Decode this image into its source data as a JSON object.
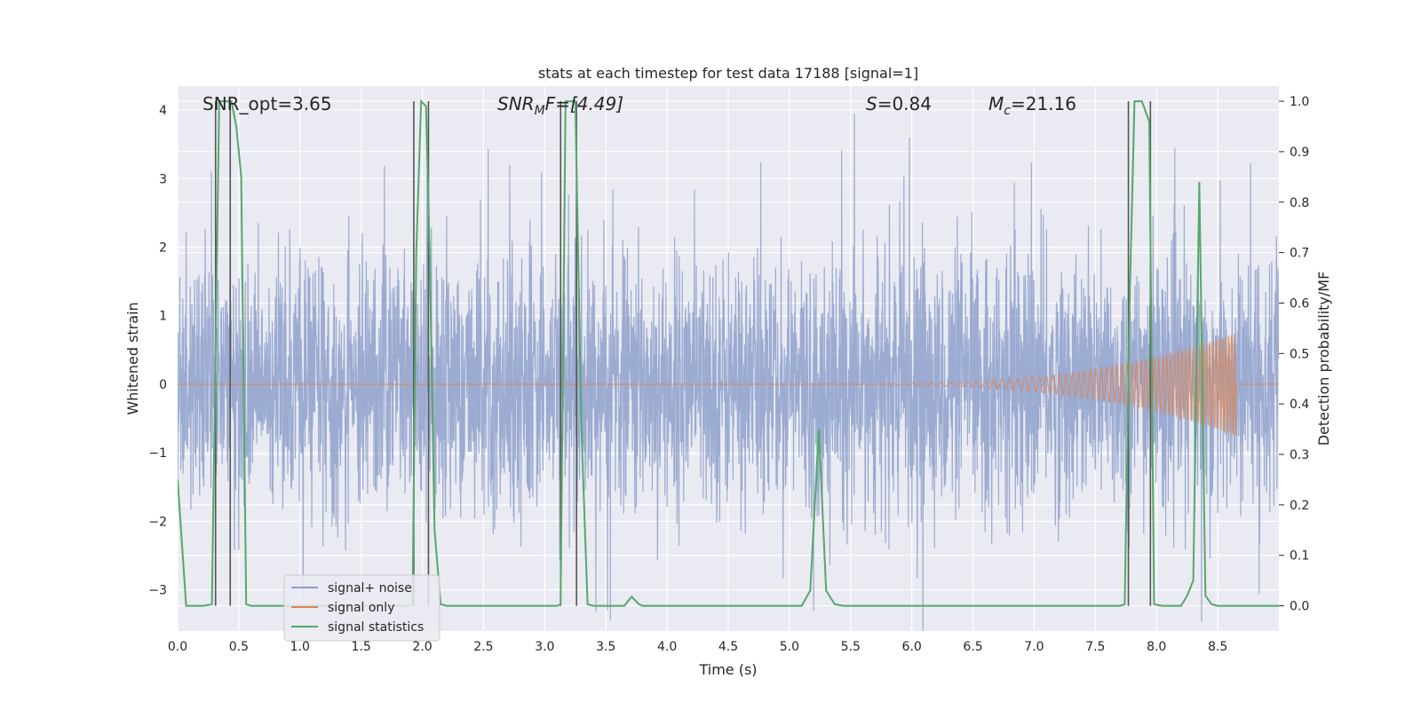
{
  "chart_data": {
    "type": "line",
    "title": "stats at each timestep for test data 17188 [signal=1]",
    "xlabel": "Time (s)",
    "ylabel_left": "Whitened strain",
    "ylabel_right": "Detection probability/MF",
    "xlim": [
      0.0,
      9.0
    ],
    "ylim_left": [
      -3.6,
      4.35
    ],
    "ylim_right": [
      -0.05,
      1.03
    ],
    "grid": true,
    "legend_position": "lower-left",
    "x_ticks": [
      "0.0",
      "0.5",
      "1.0",
      "1.5",
      "2.0",
      "2.5",
      "3.0",
      "3.5",
      "4.0",
      "4.5",
      "5.0",
      "5.5",
      "6.0",
      "6.5",
      "7.0",
      "7.5",
      "8.0",
      "8.5"
    ],
    "y_ticks_left": [
      "4",
      "3",
      "2",
      "1",
      "0",
      "−1",
      "−2",
      "−3"
    ],
    "y_ticks_right": [
      "1.0",
      "0.9",
      "0.8",
      "0.7",
      "0.6",
      "0.5",
      "0.4",
      "0.3",
      "0.2",
      "0.1",
      "0.0"
    ],
    "annotations": {
      "snr_opt": "SNR_opt=3.65",
      "snr_mf_base": "SNR",
      "snr_mf_sub": "M",
      "snr_mf_rest": "F=[4.49]",
      "s_italic": "S",
      "s_rest": "=0.84",
      "mc_italic": "M",
      "mc_sub": "c",
      "mc_rest": "=21.16"
    },
    "series": [
      {
        "name": "signal+ noise",
        "color": "#8da0cb",
        "style": "whitened noise, amplitude roughly ±2, occasional spikes to 4",
        "max_abs": 4.0
      },
      {
        "name": "signal only",
        "color": "#dd8452",
        "chirp_start": 5.0,
        "chirp_end": 8.65,
        "peak_amplitude": 0.75
      },
      {
        "name": "signal statistics",
        "color": "#55a868",
        "x": [
          0.0,
          0.07,
          0.14,
          0.21,
          0.28,
          0.31,
          0.34,
          0.37,
          0.4,
          0.44,
          0.48,
          0.52,
          0.56,
          0.6,
          1.88,
          1.92,
          1.95,
          1.99,
          2.03,
          2.06,
          2.1,
          2.15,
          2.2,
          3.1,
          3.13,
          3.17,
          3.21,
          3.25,
          3.3,
          3.35,
          3.4,
          3.5,
          3.65,
          3.71,
          3.77,
          3.8,
          5.1,
          5.17,
          5.24,
          5.3,
          5.37,
          5.44,
          7.7,
          7.74,
          7.78,
          7.82,
          7.88,
          7.94,
          7.98,
          8.05,
          8.2,
          8.25,
          8.3,
          8.35,
          8.4,
          8.45,
          8.5,
          8.6,
          9.0
        ],
        "y": [
          0.25,
          0.0,
          0.0,
          0.0,
          0.003,
          0.5,
          1.0,
          1.0,
          1.0,
          1.0,
          0.95,
          0.85,
          0.003,
          0.0,
          0.0,
          0.003,
          0.7,
          1.0,
          0.99,
          0.7,
          0.15,
          0.003,
          0.0,
          0.0,
          0.003,
          1.0,
          1.0,
          1.0,
          0.35,
          0.003,
          0.0,
          0.0,
          0.0,
          0.018,
          0.003,
          0.0,
          0.0,
          0.03,
          0.35,
          0.03,
          0.003,
          0.0,
          0.0,
          0.003,
          0.6,
          1.0,
          1.0,
          0.96,
          0.003,
          0.0,
          0.0,
          0.02,
          0.05,
          0.84,
          0.02,
          0.003,
          0.0,
          0.0,
          0.0
        ]
      }
    ],
    "vertical_lines": [
      0.31,
      0.43,
      1.93,
      2.05,
      3.13,
      3.26,
      7.77,
      7.95
    ],
    "vline_color": "#555555"
  }
}
